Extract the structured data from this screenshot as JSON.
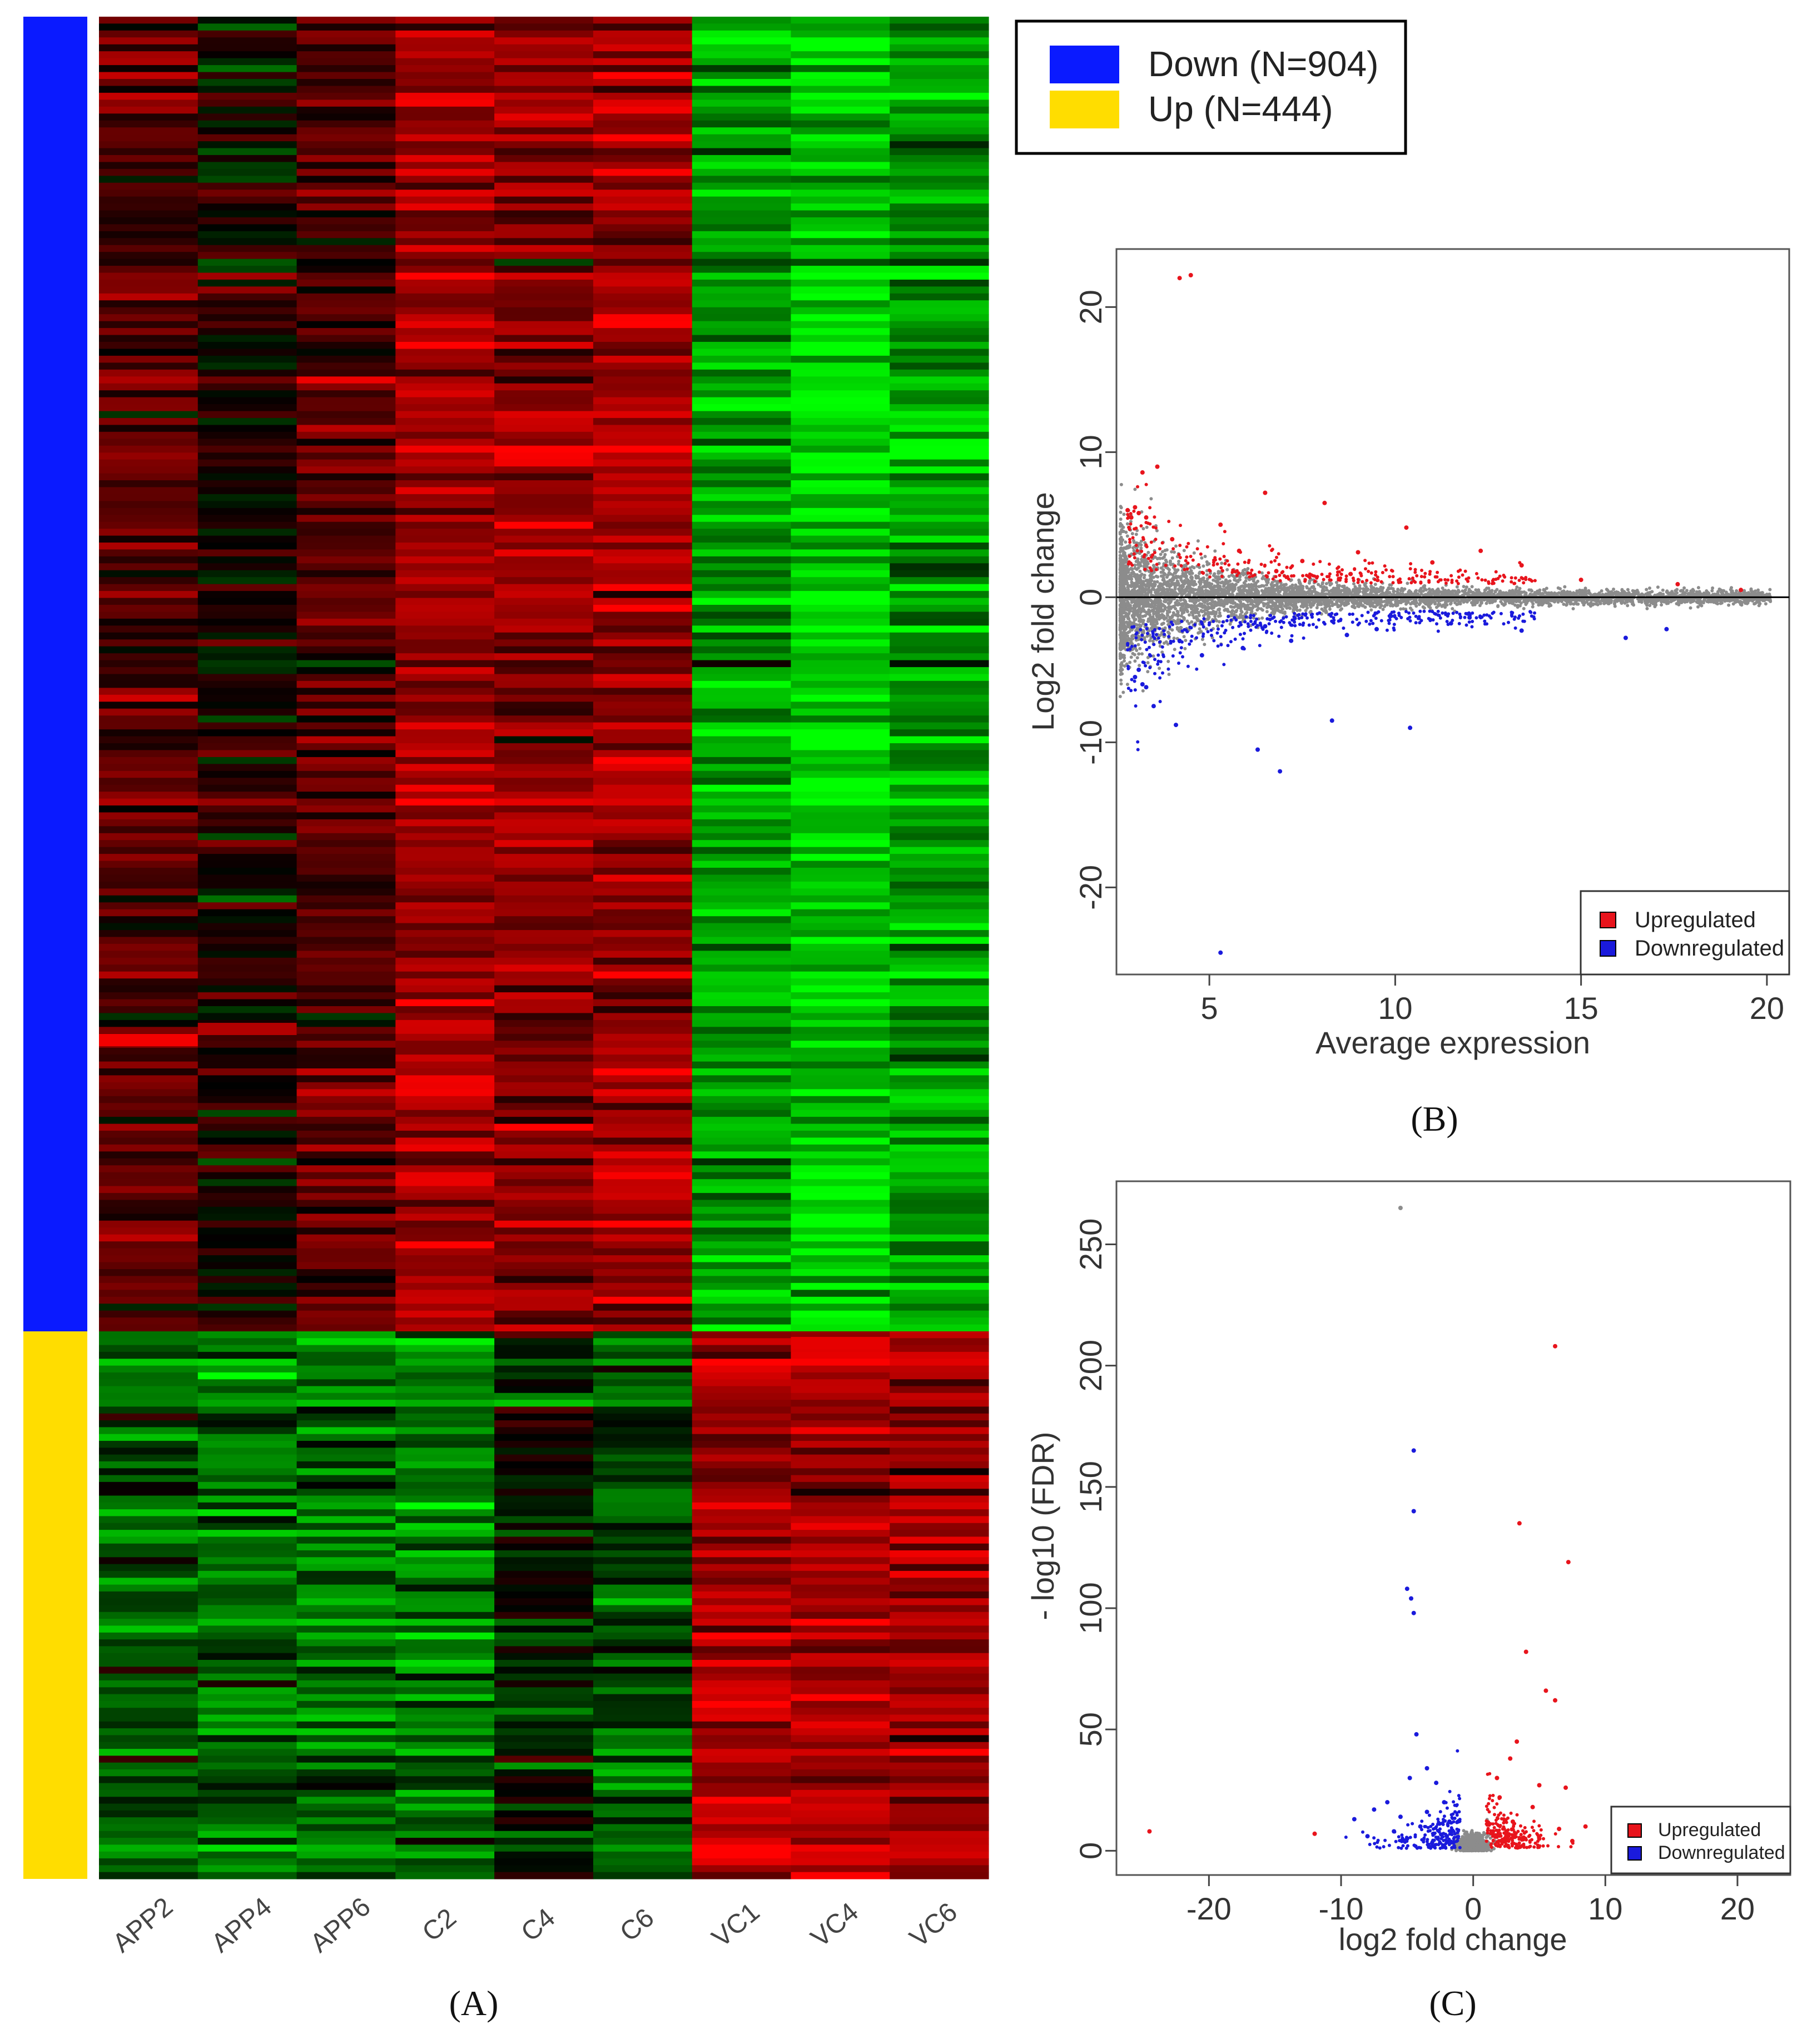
{
  "panels": {
    "a": {
      "caption": "(A)"
    },
    "b": {
      "caption": "(B)"
    },
    "c": {
      "caption": "(C)"
    }
  },
  "legend_a": {
    "items": [
      {
        "label": "Down (N=904)",
        "color": "#0a1aff"
      },
      {
        "label": "Up (N=444)",
        "color": "#ffdd00"
      }
    ]
  },
  "chart_data": [
    {
      "type": "heatmap",
      "panel": "A",
      "columns": [
        "APP2",
        "APP4",
        "APP6",
        "C2",
        "C4",
        "C6",
        "VC1",
        "VC4",
        "VC6"
      ],
      "row_groups": [
        {
          "name": "Down",
          "count": 904,
          "color": "#0a1aff"
        },
        {
          "name": "Up",
          "count": 444,
          "color": "#ffdd00"
        }
      ],
      "color_scale": {
        "low": "#00ff00",
        "mid": "#000000",
        "high": "#ff0000"
      },
      "pattern": {
        "Down": {
          "APP2": "dark red",
          "APP4": "mixed dark",
          "APP6": "dark red",
          "C2": "red",
          "C4": "red",
          "C6": "red",
          "VC1": "green",
          "VC4": "bright green",
          "VC6": "green"
        },
        "Up": {
          "APP2": "dark green",
          "APP4": "green",
          "APP6": "green",
          "C2": "green",
          "C4": "dark mixed",
          "C6": "dark green",
          "VC1": "red",
          "VC4": "red",
          "VC6": "red"
        }
      }
    },
    {
      "type": "scatter",
      "panel": "B",
      "title": "",
      "xlabel": "Average expression",
      "ylabel": "Log2 fold change",
      "xlim": [
        2.5,
        20.6
      ],
      "ylim": [
        -26,
        24
      ],
      "xticks": [
        5,
        10,
        15,
        20
      ],
      "yticks": [
        -20,
        -10,
        0,
        10,
        20
      ],
      "hline": 0,
      "legend": {
        "placement": "bottom-right",
        "entries": [
          {
            "label": "Upregulated",
            "color": "#e8141c"
          },
          {
            "label": "Downregulated",
            "color": "#1a1adc"
          }
        ]
      },
      "series": [
        {
          "name": "Not significant",
          "color": "#8c8c8c",
          "summary": "dense band around 0, spread widest at low expression (about -6 to 6 near x=3), narrowing toward 0 as expression increases to ~20"
        },
        {
          "name": "Upregulated",
          "color": "#e8141c",
          "points": [
            [
              4.2,
              22
            ],
            [
              4.5,
              22.2
            ],
            [
              3.6,
              9
            ],
            [
              3.2,
              8.6
            ],
            [
              2.8,
              6
            ],
            [
              2.9,
              5.5
            ],
            [
              3.0,
              6.2
            ],
            [
              3.1,
              5.8
            ],
            [
              3.3,
              5.5
            ],
            [
              6.5,
              7.2
            ],
            [
              8.1,
              6.5
            ],
            [
              5.3,
              5.0
            ],
            [
              10.3,
              4.8
            ],
            [
              12.3,
              3.2
            ],
            [
              13.4,
              2.2
            ],
            [
              15.0,
              1.2
            ],
            [
              17.6,
              0.9
            ],
            [
              19.3,
              0.5
            ],
            [
              9.0,
              3.1
            ],
            [
              11.0,
              2.4
            ],
            [
              4.0,
              4.0
            ],
            [
              5.8,
              3.2
            ],
            [
              7.5,
              2.5
            ],
            [
              6.8,
              1.8
            ],
            [
              8.8,
              1.6
            ]
          ]
        },
        {
          "name": "Downregulated",
          "color": "#1a1adc",
          "points": [
            [
              3.1,
              -5.0
            ],
            [
              3.2,
              -6.0
            ],
            [
              3.0,
              -5.5
            ],
            [
              3.3,
              -6.2
            ],
            [
              3.5,
              -7.5
            ],
            [
              4.1,
              -8.8
            ],
            [
              6.3,
              -10.5
            ],
            [
              6.9,
              -12
            ],
            [
              5.3,
              -24.5
            ],
            [
              8.3,
              -8.5
            ],
            [
              10.4,
              -9.0
            ],
            [
              16.2,
              -2.8
            ],
            [
              17.3,
              -2.2
            ],
            [
              13.4,
              -2.3
            ],
            [
              4.8,
              -4.0
            ],
            [
              5.9,
              -3.5
            ],
            [
              7.2,
              -3.0
            ],
            [
              8.7,
              -2.6
            ],
            [
              9.5,
              -2.2
            ],
            [
              11.5,
              -1.8
            ],
            [
              12.0,
              -1.4
            ],
            [
              4.2,
              -3.0
            ],
            [
              6.5,
              -2.0
            ]
          ]
        }
      ]
    },
    {
      "type": "scatter",
      "panel": "C",
      "title": "",
      "xlabel": "log2 fold change",
      "ylabel": "- log10 (FDR)",
      "xlim": [
        -27,
        24
      ],
      "ylim": [
        -10,
        276
      ],
      "xticks": [
        -20,
        -10,
        0,
        10,
        20
      ],
      "yticks": [
        0,
        50,
        100,
        150,
        200,
        250
      ],
      "legend": {
        "placement": "bottom-right",
        "entries": [
          {
            "label": "Upregulated",
            "color": "#e8141c"
          },
          {
            "label": "Downregulated",
            "color": "#1a1adc"
          }
        ]
      },
      "series": [
        {
          "name": "Not significant",
          "color": "#8c8c8c",
          "summary": "cluster near x=0, y between 0 and ~10"
        },
        {
          "name": "Upregulated",
          "color": "#e8141c",
          "points": [
            [
              6.2,
              208
            ],
            [
              3.5,
              135
            ],
            [
              7.2,
              119
            ],
            [
              4.0,
              82
            ],
            [
              5.5,
              66
            ],
            [
              6.2,
              62
            ],
            [
              3.3,
              45
            ],
            [
              2.8,
              38
            ],
            [
              1.8,
              30
            ],
            [
              5.0,
              27
            ],
            [
              7.0,
              26
            ],
            [
              2.0,
              22
            ],
            [
              4.5,
              18
            ],
            [
              8.5,
              10
            ],
            [
              6.5,
              9
            ],
            [
              3.0,
              12
            ],
            [
              1.5,
              8
            ],
            [
              2.5,
              6
            ],
            [
              5.0,
              5
            ],
            [
              7.5,
              4
            ]
          ]
        },
        {
          "name": "Downregulated",
          "color": "#1a1adc",
          "points": [
            [
              -4.5,
              165
            ],
            [
              -4.5,
              140
            ],
            [
              -5.0,
              108
            ],
            [
              -4.7,
              104
            ],
            [
              -4.5,
              98
            ],
            [
              -4.3,
              48
            ],
            [
              -3.5,
              34
            ],
            [
              -4.8,
              30
            ],
            [
              -2.8,
              28
            ],
            [
              -6.5,
              20
            ],
            [
              -7.5,
              17
            ],
            [
              -9.0,
              13
            ],
            [
              -3.5,
              16
            ],
            [
              -2.2,
              20
            ],
            [
              -5.5,
              14
            ],
            [
              -1.8,
              12
            ],
            [
              -4.0,
              10
            ],
            [
              -6.0,
              8
            ],
            [
              -3.0,
              7
            ],
            [
              -2.0,
              6
            ],
            [
              -8.0,
              6
            ],
            [
              -5.0,
              5
            ]
          ]
        },
        {
          "name": "Outliers",
          "color": "#e8141c",
          "points": [
            [
              -24.5,
              8
            ],
            [
              -12.0,
              7
            ]
          ]
        },
        {
          "name": "Top",
          "color": "#8c8c8c",
          "points": [
            [
              -5.5,
              265
            ]
          ]
        }
      ]
    }
  ]
}
